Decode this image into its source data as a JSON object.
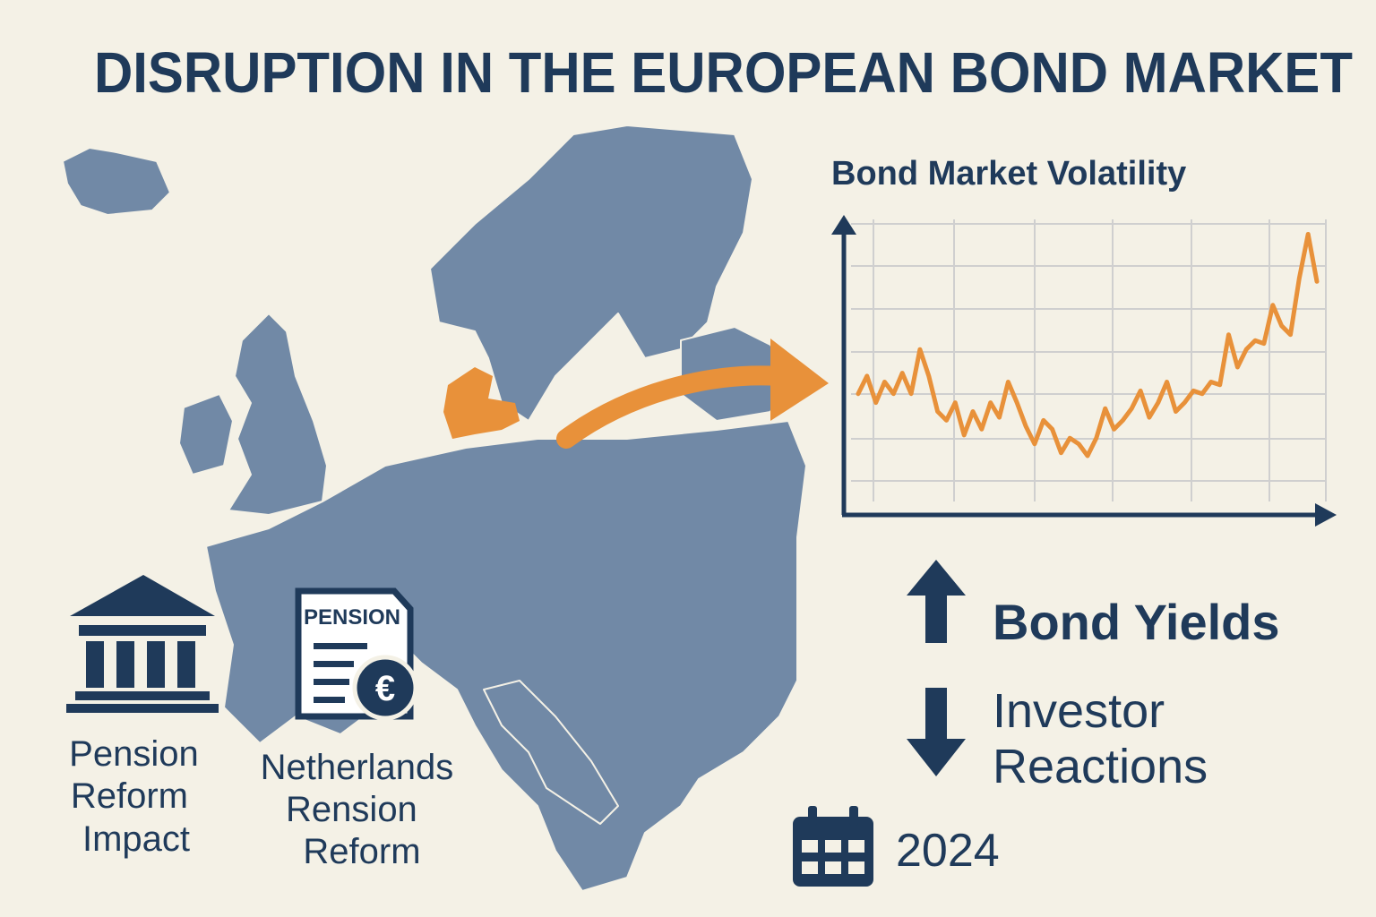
{
  "title": "DISRUPTION IN THE EUROPEAN BOND MARKET",
  "chart_data": {
    "type": "line",
    "title": "Bond Market Volatility",
    "values": [
      41,
      47,
      38,
      45,
      41,
      48,
      41,
      56,
      47,
      35,
      32,
      38,
      27,
      35,
      29,
      38,
      33,
      45,
      38,
      30,
      24,
      32,
      29,
      21,
      26,
      24,
      20,
      26,
      36,
      29,
      32,
      36,
      42,
      33,
      38,
      45,
      35,
      38,
      42,
      41,
      45,
      44,
      61,
      50,
      56,
      59,
      58,
      71,
      64,
      61,
      80,
      95,
      79
    ],
    "color": "#e8913a",
    "ylim": [
      0,
      100
    ],
    "grid": true
  },
  "document_icon": {
    "heading": "PENSION",
    "currency": "€"
  },
  "left_label": [
    "Pension",
    "Reform",
    "Impact"
  ],
  "center_label": [
    "Netherlands",
    "Rension",
    "Reform"
  ],
  "bond_yields": "Bond Yields",
  "investor_reactions": [
    "Investor",
    "Reactions"
  ],
  "year": "2024"
}
